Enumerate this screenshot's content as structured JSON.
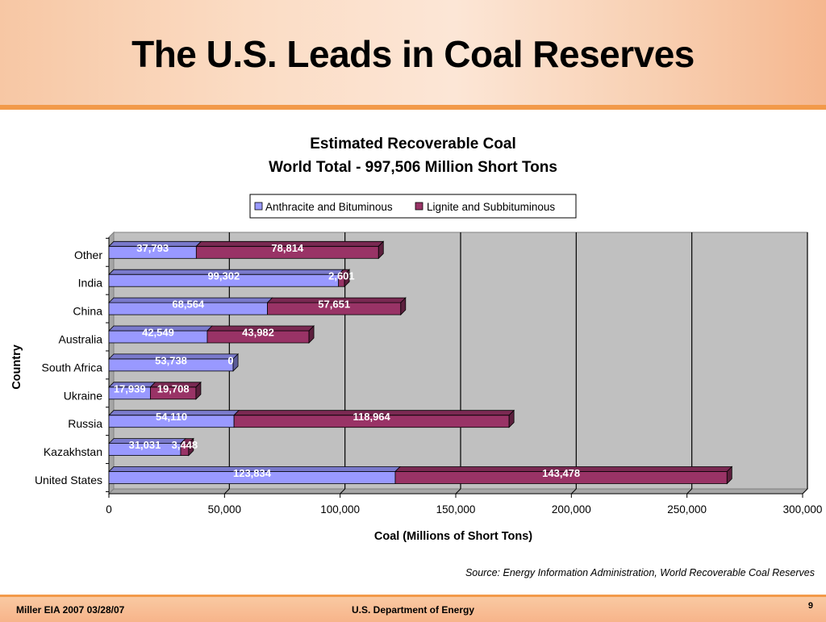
{
  "slide": {
    "title": "The U.S. Leads in Coal Reserves",
    "source": "Source:  Energy Information Administration, World Recoverable Coal Reserves",
    "footer_left": "Miller  EIA 2007   03/28/07",
    "footer_center": "U.S. Department of Energy",
    "page_number": "9"
  },
  "chart_data": {
    "type": "bar",
    "orientation": "horizontal",
    "stacked": true,
    "title": "Estimated Recoverable Coal",
    "subtitle": "World Total - 997,506 Million Short Tons",
    "xlabel": "Coal (Millions of Short Tons)",
    "ylabel": "Country",
    "xlim": [
      0,
      300000
    ],
    "x_ticks": [
      "0",
      "50,000",
      "100,000",
      "150,000",
      "200,000",
      "250,000",
      "300,000"
    ],
    "categories": [
      "United States",
      "Kazakhstan",
      "Russia",
      "Ukraine",
      "South Africa",
      "Australia",
      "China",
      "India",
      "Other"
    ],
    "series": [
      {
        "name": "Anthracite and Bituminous",
        "color": "#9999ff",
        "values": [
          123834,
          31031,
          54110,
          17939,
          53738,
          42549,
          68564,
          99302,
          37793
        ],
        "labels": [
          "123,834",
          "31,031",
          "54,110",
          "17,939",
          "53,738",
          "42,549",
          "68,564",
          "99,302",
          "37,793"
        ]
      },
      {
        "name": "Lignite and Subbituminous",
        "color": "#993366",
        "values": [
          143478,
          3448,
          118964,
          19708,
          0,
          43982,
          57651,
          2601,
          78814
        ],
        "labels": [
          "143,478",
          "3,448",
          "118,964",
          "19,708",
          "0",
          "43,982",
          "57,651",
          "2,601",
          "78,814"
        ]
      }
    ],
    "grid": true,
    "legend_position": "top"
  }
}
